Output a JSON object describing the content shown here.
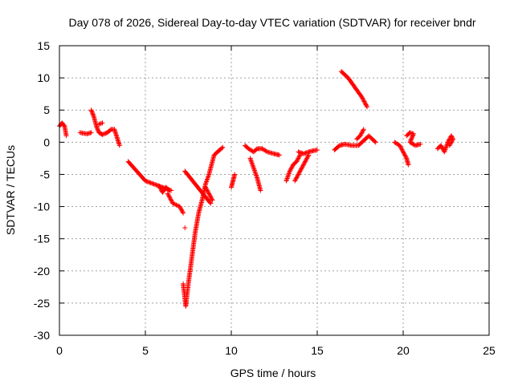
{
  "chart_data": {
    "type": "scatter",
    "title": "Day 078 of 2026, Sidereal Day-to-day VTEC variation (SDTVAR) for receiver bndr",
    "xlabel": "GPS time / hours",
    "ylabel": "SDTVAR / TECUs",
    "xlim": [
      0,
      25
    ],
    "ylim": [
      -30,
      15
    ],
    "xticks": [
      0,
      5,
      10,
      15,
      20,
      25
    ],
    "yticks": [
      -30,
      -25,
      -20,
      -15,
      -10,
      -5,
      0,
      5,
      10,
      15
    ],
    "grid": true,
    "legend": "none",
    "marker": "plus",
    "color": "#ff0000",
    "segments": [
      [
        [
          0.0,
          2.5
        ],
        [
          0.15,
          3.0
        ],
        [
          0.3,
          2.5
        ],
        [
          0.4,
          1.0
        ]
      ],
      [
        [
          1.2,
          1.5
        ],
        [
          1.6,
          1.3
        ],
        [
          1.85,
          1.5
        ]
      ],
      [
        [
          1.85,
          5.0
        ],
        [
          2.0,
          4.0
        ],
        [
          2.15,
          2.5
        ],
        [
          2.3,
          1.5
        ],
        [
          2.5,
          1.2
        ],
        [
          2.8,
          1.5
        ],
        [
          3.0,
          2.0
        ],
        [
          3.2,
          2.0
        ],
        [
          3.5,
          -0.5
        ]
      ],
      [
        [
          2.3,
          2.8
        ],
        [
          2.5,
          3.0
        ]
      ],
      [
        [
          4.0,
          -3.0
        ],
        [
          4.5,
          -4.5
        ],
        [
          5.0,
          -6.0
        ],
        [
          5.5,
          -6.5
        ],
        [
          6.0,
          -7.0
        ],
        [
          6.5,
          -7.5
        ]
      ],
      [
        [
          5.8,
          -6.8
        ],
        [
          6.0,
          -7.8
        ],
        [
          6.2,
          -7.0
        ],
        [
          6.4,
          -7.5
        ]
      ],
      [
        [
          6.3,
          -8.0
        ],
        [
          6.6,
          -9.5
        ],
        [
          7.0,
          -10.0
        ],
        [
          7.2,
          -11.0
        ]
      ],
      [
        [
          7.2,
          -22.0
        ],
        [
          7.35,
          -25.5
        ],
        [
          7.5,
          -22.0
        ],
        [
          7.7,
          -18.0
        ],
        [
          7.9,
          -14.0
        ],
        [
          8.1,
          -11.0
        ],
        [
          8.3,
          -9.0
        ],
        [
          8.5,
          -6.5
        ],
        [
          8.7,
          -5.0
        ],
        [
          8.85,
          -3.5
        ],
        [
          9.0,
          -2.0
        ],
        [
          9.2,
          -1.5
        ],
        [
          9.5,
          -0.8
        ]
      ],
      [
        [
          7.3,
          -4.5
        ],
        [
          7.6,
          -5.5
        ],
        [
          7.9,
          -6.5
        ],
        [
          8.2,
          -7.5
        ],
        [
          8.5,
          -8.5
        ],
        [
          8.8,
          -9.5
        ]
      ],
      [
        [
          7.3,
          -13.3
        ]
      ],
      [
        [
          8.5,
          -7.0
        ],
        [
          8.7,
          -8.0
        ],
        [
          8.9,
          -9.0
        ]
      ],
      [
        [
          10.0,
          -7.0
        ],
        [
          10.1,
          -6.0
        ],
        [
          10.2,
          -5.0
        ]
      ],
      [
        [
          10.8,
          -0.5
        ],
        [
          11.0,
          -1.0
        ],
        [
          11.3,
          -1.5
        ],
        [
          11.5,
          -1.0
        ],
        [
          11.8,
          -1.0
        ],
        [
          12.1,
          -1.5
        ],
        [
          12.5,
          -1.8
        ],
        [
          12.8,
          -2.0
        ]
      ],
      [
        [
          11.1,
          -2.5
        ],
        [
          11.3,
          -4.0
        ],
        [
          11.5,
          -5.5
        ],
        [
          11.7,
          -7.5
        ]
      ],
      [
        [
          13.2,
          -6.0
        ],
        [
          13.4,
          -4.5
        ],
        [
          13.6,
          -3.5
        ],
        [
          13.8,
          -3.0
        ],
        [
          14.0,
          -2.0
        ]
      ],
      [
        [
          13.7,
          -6.0
        ],
        [
          13.9,
          -5.0
        ],
        [
          14.1,
          -4.0
        ],
        [
          14.3,
          -3.0
        ],
        [
          14.5,
          -2.0
        ]
      ],
      [
        [
          13.9,
          -1.5
        ],
        [
          14.2,
          -1.8
        ],
        [
          14.5,
          -1.5
        ],
        [
          14.8,
          -1.3
        ],
        [
          15.0,
          -1.2
        ]
      ],
      [
        [
          16.0,
          -1.2
        ],
        [
          16.3,
          -0.5
        ],
        [
          16.6,
          -0.3
        ],
        [
          17.0,
          -0.5
        ],
        [
          17.4,
          -0.5
        ],
        [
          17.6,
          0.0
        ],
        [
          17.8,
          0.5
        ],
        [
          18.0,
          1.0
        ],
        [
          18.2,
          0.5
        ],
        [
          18.4,
          0.0
        ]
      ],
      [
        [
          16.4,
          11.0
        ],
        [
          16.8,
          10.0
        ],
        [
          17.2,
          8.5
        ],
        [
          17.6,
          7.0
        ],
        [
          17.9,
          5.5
        ]
      ],
      [
        [
          17.3,
          0.5
        ],
        [
          17.5,
          1.0
        ],
        [
          17.7,
          2.0
        ]
      ],
      [
        [
          19.5,
          0.0
        ],
        [
          19.8,
          -0.5
        ],
        [
          20.0,
          -1.5
        ],
        [
          20.2,
          -2.5
        ],
        [
          20.3,
          -3.5
        ]
      ],
      [
        [
          20.2,
          1.0
        ],
        [
          20.4,
          1.5
        ],
        [
          20.6,
          1.3
        ],
        [
          20.4,
          0.0
        ],
        [
          20.7,
          -0.5
        ],
        [
          21.0,
          -0.3
        ]
      ],
      [
        [
          22.0,
          -1.0
        ],
        [
          22.2,
          -0.5
        ],
        [
          22.4,
          -1.5
        ],
        [
          22.6,
          0.0
        ],
        [
          22.8,
          1.0
        ],
        [
          22.9,
          0.5
        ],
        [
          22.7,
          -0.5
        ]
      ]
    ]
  }
}
